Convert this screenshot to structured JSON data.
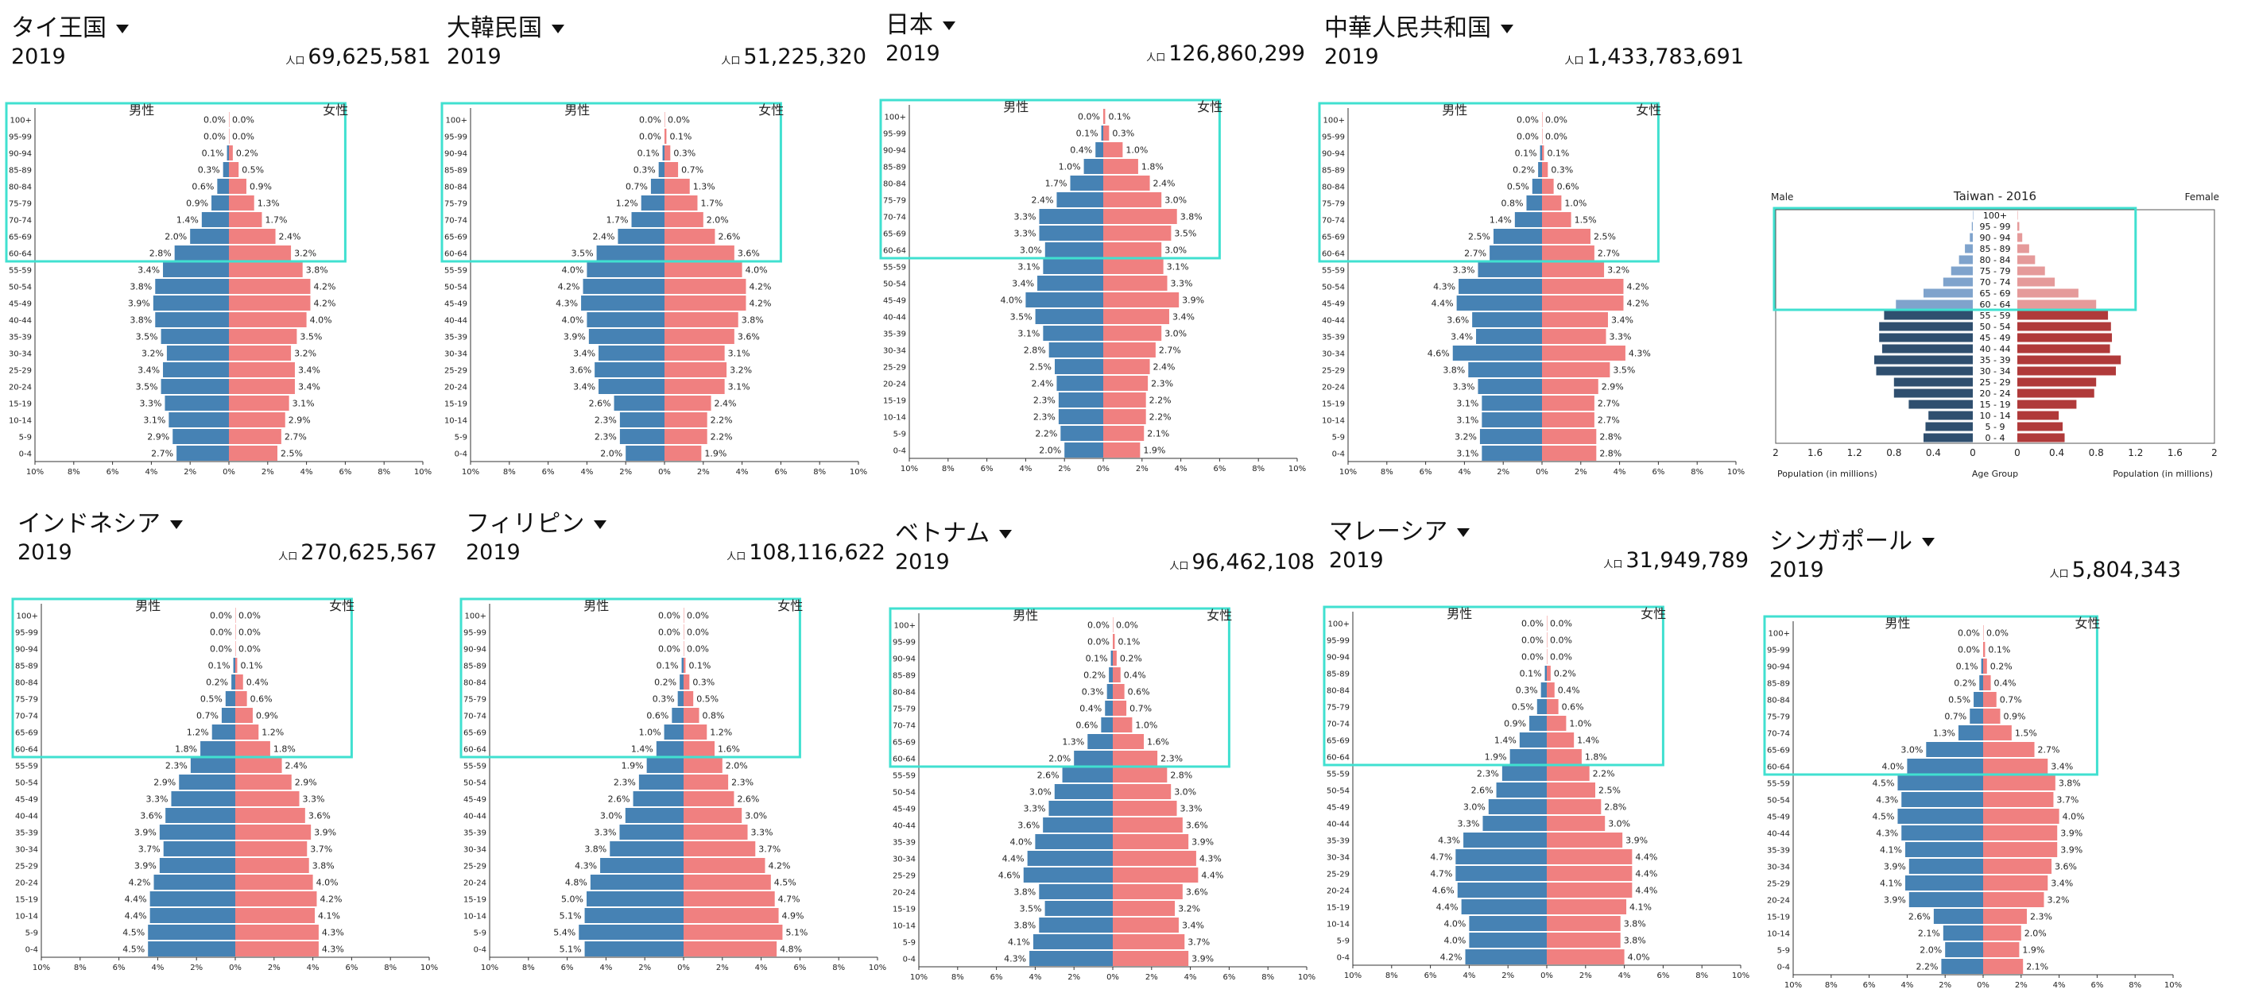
{
  "colors": {
    "male": "#4682b4",
    "female": "#f08080",
    "highlight": "#40e0d0",
    "tw_male": "#2f4f6f",
    "tw_female": "#b03a3a"
  },
  "labels": {
    "male": "男性",
    "female": "女性",
    "pop_prefix": "人口",
    "year": "2019"
  },
  "chart_data": [
    {
      "type": "bar",
      "name_label": "タイ王国",
      "year": "2019",
      "population": "69,625,581",
      "categories": [
        "100+",
        "95-99",
        "90-94",
        "85-89",
        "80-84",
        "75-79",
        "70-74",
        "65-69",
        "60-64",
        "55-59",
        "50-54",
        "45-49",
        "40-44",
        "35-39",
        "30-34",
        "25-29",
        "20-24",
        "15-19",
        "10-14",
        "5-9",
        "0-4"
      ],
      "male": [
        0.0,
        0.0,
        0.1,
        0.3,
        0.6,
        0.9,
        1.4,
        2.0,
        2.8,
        3.4,
        3.8,
        3.9,
        3.8,
        3.5,
        3.2,
        3.4,
        3.5,
        3.3,
        3.1,
        2.9,
        2.7
      ],
      "female": [
        0.0,
        0.0,
        0.2,
        0.5,
        0.9,
        1.3,
        1.7,
        2.4,
        3.2,
        3.8,
        4.2,
        4.2,
        4.0,
        3.5,
        3.2,
        3.4,
        3.4,
        3.1,
        2.9,
        2.7,
        2.5
      ],
      "xticks": [
        "10%",
        "8%",
        "6%",
        "4%",
        "2%",
        "0%",
        "2%",
        "4%",
        "6%",
        "8%",
        "10%"
      ]
    },
    {
      "type": "bar",
      "name_label": "大韓民国",
      "year": "2019",
      "population": "51,225,320",
      "categories": [
        "100+",
        "95-99",
        "90-94",
        "85-89",
        "80-84",
        "75-79",
        "70-74",
        "65-69",
        "60-64",
        "55-59",
        "50-54",
        "45-49",
        "40-44",
        "35-39",
        "30-34",
        "25-29",
        "20-24",
        "15-19",
        "10-14",
        "5-9",
        "0-4"
      ],
      "male": [
        0.0,
        0.0,
        0.1,
        0.3,
        0.7,
        1.2,
        1.7,
        2.4,
        3.5,
        4.0,
        4.2,
        4.3,
        4.0,
        3.9,
        3.4,
        3.6,
        3.4,
        2.6,
        2.3,
        2.3,
        2.0
      ],
      "female": [
        0.0,
        0.1,
        0.3,
        0.7,
        1.3,
        1.7,
        2.0,
        2.6,
        3.6,
        4.0,
        4.2,
        4.2,
        3.8,
        3.6,
        3.1,
        3.2,
        3.1,
        2.4,
        2.2,
        2.2,
        1.9
      ],
      "xticks": [
        "10%",
        "8%",
        "6%",
        "4%",
        "2%",
        "0%",
        "2%",
        "4%",
        "6%",
        "8%",
        "10%"
      ]
    },
    {
      "type": "bar",
      "name_label": "日本",
      "year": "2019",
      "population": "126,860,299",
      "categories": [
        "100+",
        "95-99",
        "90-94",
        "85-89",
        "80-84",
        "75-79",
        "70-74",
        "65-69",
        "60-64",
        "55-59",
        "50-54",
        "45-49",
        "40-44",
        "35-39",
        "30-34",
        "25-29",
        "20-24",
        "15-19",
        "10-14",
        "5-9",
        "0-4"
      ],
      "male": [
        0.0,
        0.1,
        0.4,
        1.0,
        1.7,
        2.4,
        3.3,
        3.3,
        3.0,
        3.1,
        3.4,
        4.0,
        3.5,
        3.1,
        2.8,
        2.5,
        2.4,
        2.3,
        2.3,
        2.2,
        2.0
      ],
      "female": [
        0.1,
        0.3,
        1.0,
        1.8,
        2.4,
        3.0,
        3.8,
        3.5,
        3.0,
        3.1,
        3.3,
        3.9,
        3.4,
        3.0,
        2.7,
        2.4,
        2.3,
        2.2,
        2.2,
        2.1,
        1.9
      ],
      "xticks": [
        "10%",
        "8%",
        "6%",
        "4%",
        "2%",
        "0%",
        "2%",
        "4%",
        "6%",
        "8%",
        "10%"
      ]
    },
    {
      "type": "bar",
      "name_label": "中華人民共和国",
      "year": "2019",
      "population": "1,433,783,691",
      "categories": [
        "100+",
        "95-99",
        "90-94",
        "85-89",
        "80-84",
        "75-79",
        "70-74",
        "65-69",
        "60-64",
        "55-59",
        "50-54",
        "45-49",
        "40-44",
        "35-39",
        "30-34",
        "25-29",
        "20-24",
        "15-19",
        "10-14",
        "5-9",
        "0-4"
      ],
      "male": [
        0.0,
        0.0,
        0.1,
        0.2,
        0.5,
        0.8,
        1.4,
        2.5,
        2.7,
        3.3,
        4.3,
        4.4,
        3.6,
        3.4,
        4.6,
        3.8,
        3.3,
        3.1,
        3.1,
        3.2,
        3.1
      ],
      "female": [
        0.0,
        0.0,
        0.1,
        0.3,
        0.6,
        1.0,
        1.5,
        2.5,
        2.7,
        3.2,
        4.2,
        4.2,
        3.4,
        3.3,
        4.3,
        3.5,
        2.9,
        2.7,
        2.7,
        2.8,
        2.8
      ],
      "xticks": [
        "10%",
        "8%",
        "6%",
        "4%",
        "2%",
        "0%",
        "2%",
        "4%",
        "6%",
        "8%",
        "10%"
      ]
    },
    {
      "type": "bar",
      "name_label": "インドネシア",
      "year": "2019",
      "population": "270,625,567",
      "categories": [
        "100+",
        "95-99",
        "90-94",
        "85-89",
        "80-84",
        "75-79",
        "70-74",
        "65-69",
        "60-64",
        "55-59",
        "50-54",
        "45-49",
        "40-44",
        "35-39",
        "30-34",
        "25-29",
        "20-24",
        "15-19",
        "10-14",
        "5-9",
        "0-4"
      ],
      "male": [
        0.0,
        0.0,
        0.0,
        0.1,
        0.2,
        0.5,
        0.7,
        1.2,
        1.8,
        2.3,
        2.9,
        3.3,
        3.6,
        3.9,
        3.7,
        3.9,
        4.2,
        4.4,
        4.4,
        4.5,
        4.5
      ],
      "female": [
        0.0,
        0.0,
        0.0,
        0.1,
        0.4,
        0.6,
        0.9,
        1.2,
        1.8,
        2.4,
        2.9,
        3.3,
        3.6,
        3.9,
        3.7,
        3.8,
        4.0,
        4.2,
        4.1,
        4.3,
        4.3
      ],
      "xticks": [
        "10%",
        "8%",
        "6%",
        "4%",
        "2%",
        "0%",
        "2%",
        "4%",
        "6%",
        "8%",
        "10%"
      ]
    },
    {
      "type": "bar",
      "name_label": "フィリピン",
      "year": "2019",
      "population": "108,116,622",
      "categories": [
        "100+",
        "95-99",
        "90-94",
        "85-89",
        "80-84",
        "75-79",
        "70-74",
        "65-69",
        "60-64",
        "55-59",
        "50-54",
        "45-49",
        "40-44",
        "35-39",
        "30-34",
        "25-29",
        "20-24",
        "15-19",
        "10-14",
        "5-9",
        "0-4"
      ],
      "male": [
        0.0,
        0.0,
        0.0,
        0.1,
        0.2,
        0.3,
        0.6,
        1.0,
        1.4,
        1.9,
        2.3,
        2.6,
        3.0,
        3.3,
        3.8,
        4.3,
        4.8,
        5.0,
        5.1,
        5.4,
        5.1
      ],
      "female": [
        0.0,
        0.0,
        0.0,
        0.1,
        0.3,
        0.5,
        0.8,
        1.2,
        1.6,
        2.0,
        2.3,
        2.6,
        3.0,
        3.3,
        3.7,
        4.2,
        4.5,
        4.7,
        4.9,
        5.1,
        4.8
      ],
      "xticks": [
        "10%",
        "8%",
        "6%",
        "4%",
        "2%",
        "0%",
        "2%",
        "4%",
        "6%",
        "8%",
        "10%"
      ]
    },
    {
      "type": "bar",
      "name_label": "ベトナム",
      "year": "2019",
      "population": "96,462,108",
      "categories": [
        "100+",
        "95-99",
        "90-94",
        "85-89",
        "80-84",
        "75-79",
        "70-74",
        "65-69",
        "60-64",
        "55-59",
        "50-54",
        "45-49",
        "40-44",
        "35-39",
        "30-34",
        "25-29",
        "20-24",
        "15-19",
        "10-14",
        "5-9",
        "0-4"
      ],
      "male": [
        0.0,
        0.0,
        0.1,
        0.2,
        0.3,
        0.4,
        0.6,
        1.3,
        2.0,
        2.6,
        3.0,
        3.3,
        3.6,
        4.0,
        4.4,
        4.6,
        3.8,
        3.5,
        3.8,
        4.1,
        4.3
      ],
      "female": [
        0.0,
        0.1,
        0.2,
        0.4,
        0.6,
        0.7,
        1.0,
        1.6,
        2.3,
        2.8,
        3.0,
        3.3,
        3.6,
        3.9,
        4.3,
        4.4,
        3.6,
        3.2,
        3.4,
        3.7,
        3.9
      ],
      "xticks": [
        "10%",
        "8%",
        "6%",
        "4%",
        "2%",
        "0%",
        "2%",
        "4%",
        "6%",
        "8%",
        "10%"
      ]
    },
    {
      "type": "bar",
      "name_label": "マレーシア",
      "year": "2019",
      "population": "31,949,789",
      "categories": [
        "100+",
        "95-99",
        "90-94",
        "85-89",
        "80-84",
        "75-79",
        "70-74",
        "65-69",
        "60-64",
        "55-59",
        "50-54",
        "45-49",
        "40-44",
        "35-39",
        "30-34",
        "25-29",
        "20-24",
        "15-19",
        "10-14",
        "5-9",
        "0-4"
      ],
      "male": [
        0.0,
        0.0,
        0.0,
        0.1,
        0.3,
        0.5,
        0.9,
        1.4,
        1.9,
        2.3,
        2.6,
        3.0,
        3.3,
        4.3,
        4.7,
        4.7,
        4.6,
        4.4,
        4.0,
        4.0,
        4.2
      ],
      "female": [
        0.0,
        0.0,
        0.0,
        0.2,
        0.4,
        0.6,
        1.0,
        1.4,
        1.8,
        2.2,
        2.5,
        2.8,
        3.0,
        3.9,
        4.4,
        4.4,
        4.4,
        4.1,
        3.8,
        3.8,
        4.0
      ],
      "xticks": [
        "10%",
        "8%",
        "6%",
        "4%",
        "2%",
        "0%",
        "2%",
        "4%",
        "6%",
        "8%",
        "10%"
      ]
    },
    {
      "type": "bar",
      "name_label": "シンガポール",
      "year": "2019",
      "population": "5,804,343",
      "categories": [
        "100+",
        "95-99",
        "90-94",
        "85-89",
        "80-84",
        "75-79",
        "70-74",
        "65-69",
        "60-64",
        "55-59",
        "50-54",
        "45-49",
        "40-44",
        "35-39",
        "30-34",
        "25-29",
        "20-24",
        "15-19",
        "10-14",
        "5-9",
        "0-4"
      ],
      "male": [
        0.0,
        0.0,
        0.1,
        0.2,
        0.5,
        0.7,
        1.3,
        3.0,
        4.0,
        4.5,
        4.3,
        4.5,
        4.3,
        4.1,
        3.9,
        4.1,
        3.9,
        2.6,
        2.1,
        2.0,
        2.2
      ],
      "female": [
        0.0,
        0.1,
        0.2,
        0.4,
        0.7,
        0.9,
        1.5,
        2.7,
        3.4,
        3.8,
        3.7,
        4.0,
        3.9,
        3.9,
        3.6,
        3.4,
        3.2,
        2.3,
        2.0,
        1.9,
        2.1
      ],
      "xticks": [
        "10%",
        "8%",
        "6%",
        "4%",
        "2%",
        "0%",
        "2%",
        "4%",
        "6%",
        "8%",
        "10%"
      ]
    },
    {
      "type": "bar",
      "title": "Taiwan - 2016",
      "left_label": "Male",
      "right_label": "Female",
      "categories": [
        "100+",
        "95 - 99",
        "90 - 94",
        "85 - 89",
        "80 - 84",
        "75 - 79",
        "70 - 74",
        "65 - 69",
        "60 - 64",
        "55 - 59",
        "50 - 54",
        "45 - 49",
        "40 - 44",
        "35 - 39",
        "30 - 34",
        "25 - 29",
        "20 - 24",
        "15 - 19",
        "10 - 14",
        "5 - 9",
        "0 - 4"
      ],
      "male": [
        0.0,
        0.01,
        0.03,
        0.08,
        0.14,
        0.22,
        0.3,
        0.5,
        0.78,
        0.9,
        0.95,
        0.95,
        0.92,
        1.0,
        0.98,
        0.8,
        0.8,
        0.65,
        0.45,
        0.48,
        0.5
      ],
      "female": [
        0.0,
        0.02,
        0.05,
        0.12,
        0.18,
        0.28,
        0.38,
        0.62,
        0.8,
        0.92,
        0.95,
        0.96,
        0.94,
        1.05,
        1.0,
        0.8,
        0.78,
        0.6,
        0.42,
        0.46,
        0.48
      ],
      "xticks": [
        "2",
        "1.6",
        "1.2",
        "0.8",
        "0.4",
        "0",
        "0",
        "0.4",
        "0.8",
        "1.2",
        "1.6",
        "2"
      ],
      "xlabel_left": "Population (in millions)",
      "xlabel_center": "Age Group",
      "xlabel_right": "Population (in millions)"
    }
  ]
}
